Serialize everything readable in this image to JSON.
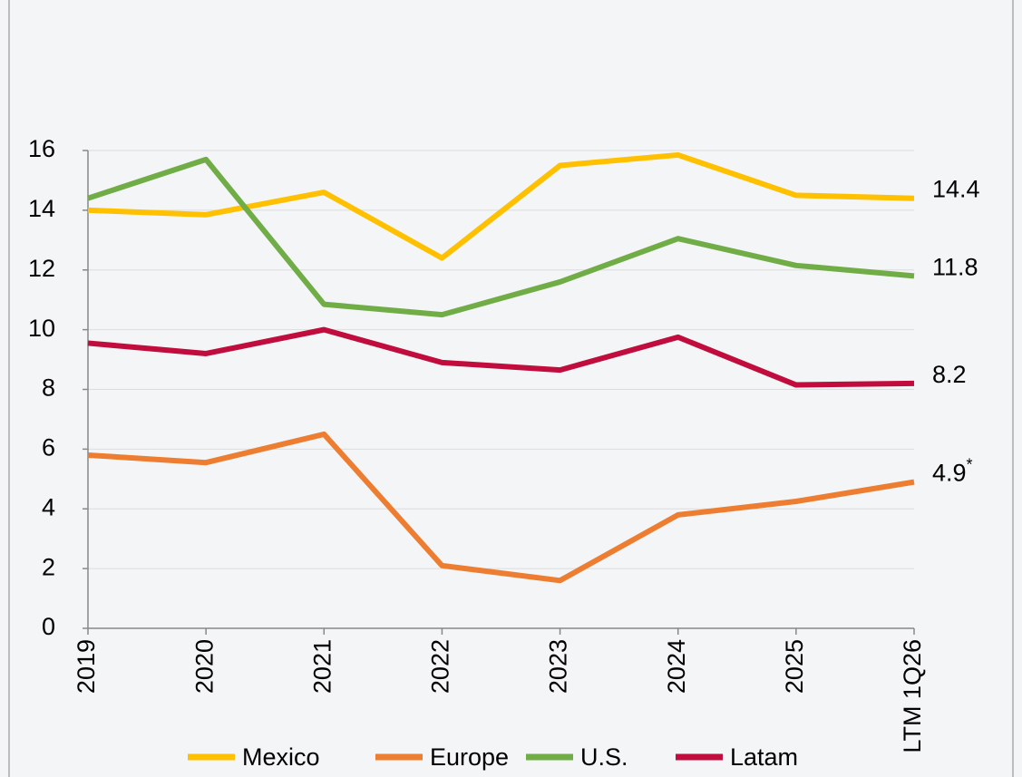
{
  "chart_data": {
    "type": "line",
    "categories": [
      "2019",
      "2020",
      "2021",
      "2022",
      "2023",
      "2024",
      "2025",
      "LTM 1Q26"
    ],
    "series": [
      {
        "name": "Mexico",
        "color": "#ffc000",
        "values": [
          14.0,
          13.85,
          14.6,
          12.4,
          15.5,
          15.85,
          14.5,
          14.4
        ]
      },
      {
        "name": "Europe",
        "color": "#ed7d31",
        "values": [
          5.8,
          5.55,
          6.5,
          2.1,
          1.6,
          3.8,
          4.25,
          4.9
        ]
      },
      {
        "name": "U.S.",
        "color": "#70ad47",
        "values": [
          14.4,
          15.7,
          10.85,
          10.5,
          11.6,
          13.05,
          12.15,
          11.8
        ]
      },
      {
        "name": "Latam",
        "color": "#c00d3e",
        "values": [
          9.55,
          9.2,
          10.0,
          8.9,
          8.65,
          9.75,
          8.15,
          8.2
        ]
      }
    ],
    "footnote_mark": "*",
    "ylim": [
      0,
      16
    ],
    "yticks": [
      0,
      2,
      4,
      6,
      8,
      10,
      12,
      14,
      16
    ],
    "grid": true
  }
}
